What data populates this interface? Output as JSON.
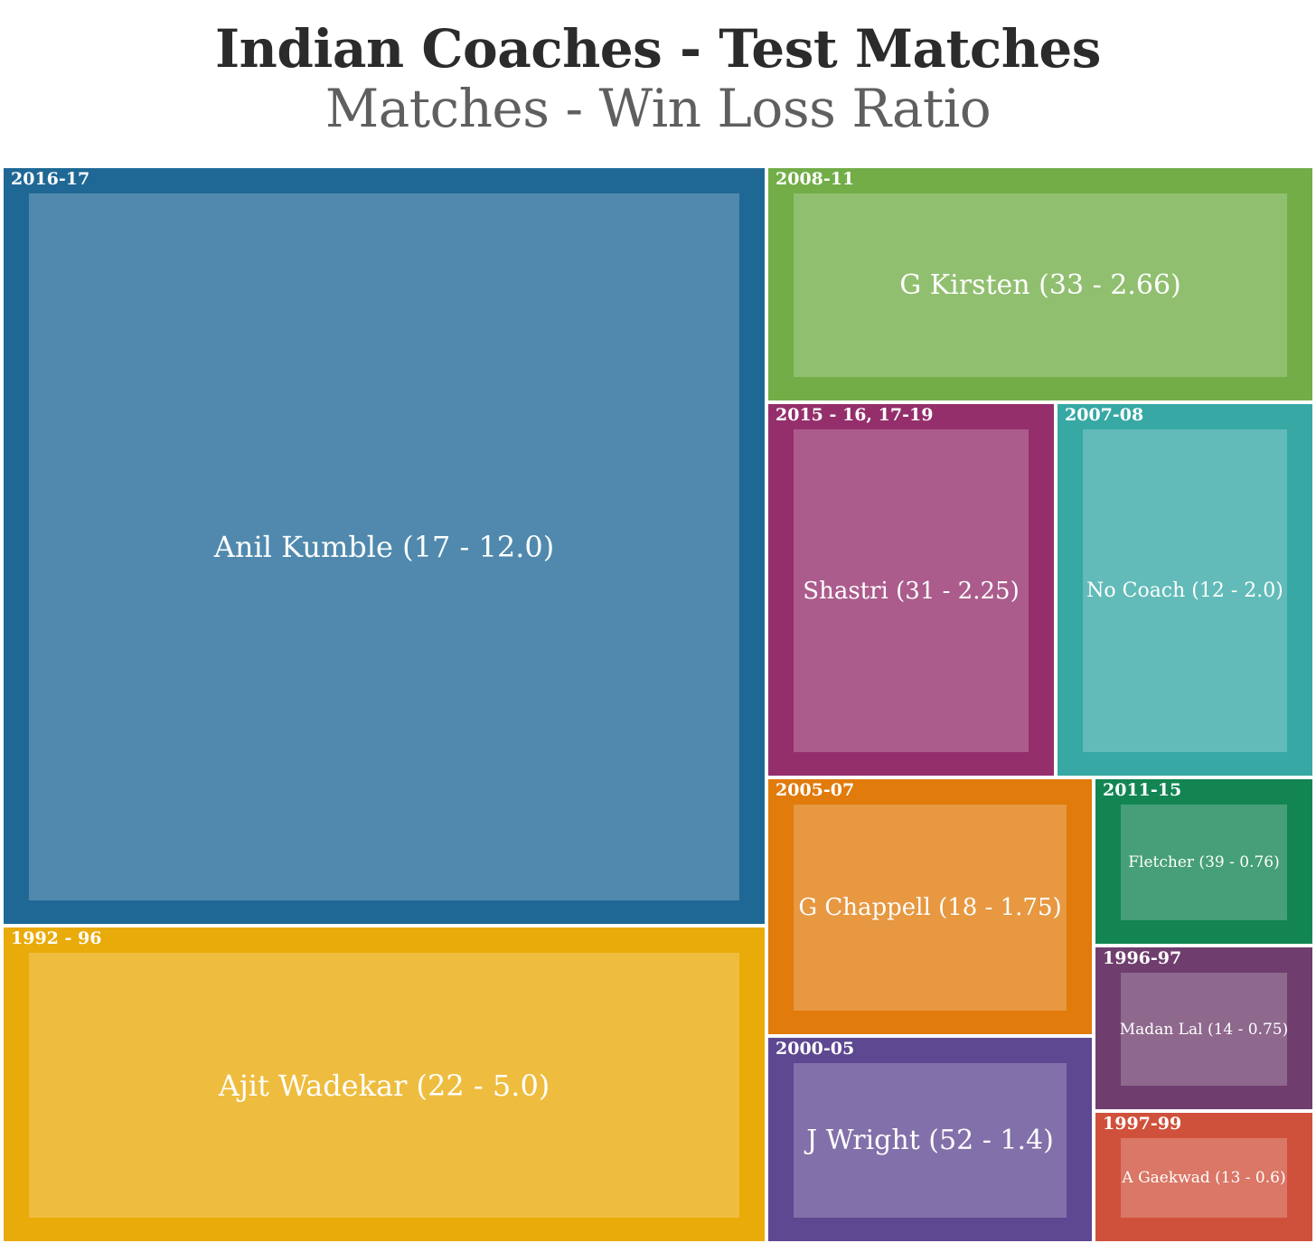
{
  "chart_data": {
    "type": "treemap",
    "title": "Indian Coaches - Test Matches",
    "subtitle": "Matches - Win Loss Ratio",
    "items": [
      {
        "period": "2016-17",
        "label": "Anil Kumble (17 - 12.0)",
        "coach": "Anil Kumble",
        "matches": 17,
        "win_loss_ratio": 12.0,
        "color": "#1f6896"
      },
      {
        "period": "1992 - 96",
        "label": "Ajit Wadekar (22 - 5.0)",
        "coach": "Ajit Wadekar",
        "matches": 22,
        "win_loss_ratio": 5.0,
        "color": "#e9ab0a"
      },
      {
        "period": "2008-11",
        "label": "G Kirsten (33 - 2.66)",
        "coach": "G Kirsten",
        "matches": 33,
        "win_loss_ratio": 2.66,
        "color": "#72ad48"
      },
      {
        "period": "2015 - 16, 17-19",
        "label": "Shastri (31 - 2.25)",
        "coach": "Shastri",
        "matches": 31,
        "win_loss_ratio": 2.25,
        "color": "#942f6c"
      },
      {
        "period": "2007-08",
        "label": "No Coach (12 - 2.0)",
        "coach": "No Coach",
        "matches": 12,
        "win_loss_ratio": 2.0,
        "color": "#37a8a4"
      },
      {
        "period": "2005-07",
        "label": "G Chappell (18 - 1.75)",
        "coach": "G Chappell",
        "matches": 18,
        "win_loss_ratio": 1.75,
        "color": "#e07b0c"
      },
      {
        "period": "2000-05",
        "label": "J Wright (52 - 1.4)",
        "coach": "J Wright",
        "matches": 52,
        "win_loss_ratio": 1.4,
        "color": "#5e4891"
      },
      {
        "period": "2011-15",
        "label": "Fletcher (39 - 0.76)",
        "coach": "Fletcher",
        "matches": 39,
        "win_loss_ratio": 0.76,
        "color": "#128553"
      },
      {
        "period": "1996-97",
        "label": "Madan Lal (14 - 0.75)",
        "coach": "Madan Lal",
        "matches": 14,
        "win_loss_ratio": 0.75,
        "color": "#6f3e6e"
      },
      {
        "period": "1997-99",
        "label": "A Gaekwad (13 - 0.6)",
        "coach": "A Gaekwad",
        "matches": 13,
        "win_loss_ratio": 0.6,
        "color": "#d0513b"
      }
    ]
  }
}
